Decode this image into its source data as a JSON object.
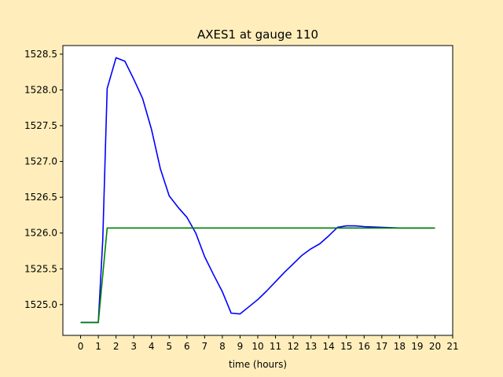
{
  "chart_data": {
    "type": "line",
    "title": "AXES1 at gauge 110",
    "xlabel": "time (hours)",
    "ylabel": "",
    "xlim": [
      -1,
      21
    ],
    "ylim": [
      1524.57,
      1528.62
    ],
    "xticks": [
      0,
      1,
      2,
      3,
      4,
      5,
      6,
      7,
      8,
      9,
      10,
      11,
      12,
      13,
      14,
      15,
      16,
      17,
      18,
      19,
      20,
      21
    ],
    "yticks": [
      1525.0,
      1525.5,
      1526.0,
      1526.5,
      1527.0,
      1527.5,
      1528.0,
      1528.5
    ],
    "ytick_labels": [
      "1525.0",
      "1525.5",
      "1526.0",
      "1526.5",
      "1527.0",
      "1527.5",
      "1528.0",
      "1528.5"
    ],
    "grid": false,
    "colors": {
      "background": "#ffeebb",
      "plot_area": "#ffffff",
      "series1": "#0000ff",
      "series2": "#008000"
    },
    "series": [
      {
        "color": "#0000ff",
        "x": [
          0,
          0.5,
          1.0,
          1.25,
          1.5,
          2.0,
          2.5,
          3.0,
          3.5,
          4.0,
          4.5,
          5.0,
          5.5,
          6.0,
          6.5,
          7.0,
          7.5,
          8.0,
          8.5,
          9.0,
          9.5,
          10.0,
          10.5,
          11.0,
          11.5,
          12.0,
          12.5,
          13.0,
          13.5,
          14.0,
          14.5,
          15.0,
          15.5,
          16.0,
          17.0,
          18.0,
          19.0,
          20.0
        ],
        "y": [
          1524.75,
          1524.75,
          1524.75,
          1525.9,
          1528.02,
          1528.45,
          1528.4,
          1528.15,
          1527.88,
          1527.45,
          1526.9,
          1526.52,
          1526.36,
          1526.22,
          1526.0,
          1525.67,
          1525.42,
          1525.18,
          1524.88,
          1524.87,
          1524.97,
          1525.07,
          1525.19,
          1525.32,
          1525.45,
          1525.57,
          1525.69,
          1525.78,
          1525.85,
          1525.96,
          1526.08,
          1526.1,
          1526.1,
          1526.09,
          1526.08,
          1526.07,
          1526.07,
          1526.07
        ]
      },
      {
        "color": "#008000",
        "x": [
          0,
          0.5,
          1.0,
          1.5,
          2.0,
          3.0,
          5.0,
          10.0,
          15.0,
          20.0
        ],
        "y": [
          1524.75,
          1524.75,
          1524.75,
          1526.07,
          1526.07,
          1526.07,
          1526.07,
          1526.07,
          1526.07,
          1526.07
        ]
      }
    ]
  }
}
